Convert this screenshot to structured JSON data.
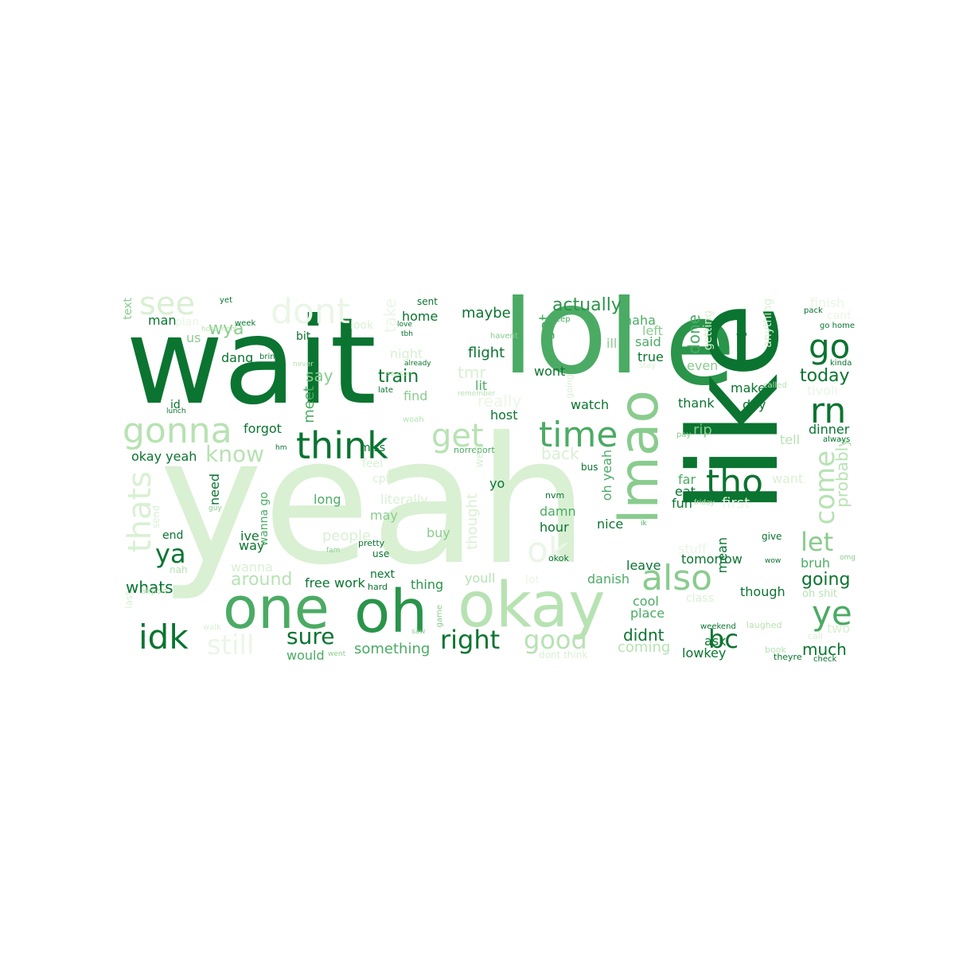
{
  "palette": [
    "#0a7430",
    "#2a944a",
    "#4bab64",
    "#89cc8e",
    "#b7e2b2",
    "#d9f0d3",
    "#eaf6e7"
  ],
  "words": [
    {
      "text": "yeah",
      "color": "#d9f0d3"
    },
    {
      "text": "wait",
      "color": "#0a7430"
    },
    {
      "text": "lol",
      "color": "#4bab64"
    },
    {
      "text": "e",
      "color": "#2a944a"
    },
    {
      "text": "like",
      "color": "#0a7430"
    },
    {
      "text": "lmao",
      "color": "#89cc8e"
    },
    {
      "text": "okay",
      "color": "#b7e2b2"
    },
    {
      "text": "one",
      "color": "#4bab64"
    },
    {
      "text": "oh",
      "color": "#2a944a"
    },
    {
      "text": "think",
      "color": "#0a7430"
    },
    {
      "text": "gonna",
      "color": "#b7e2b2"
    },
    {
      "text": "dont",
      "color": "#eaf6e7"
    },
    {
      "text": "see",
      "color": "#d9f0d3"
    },
    {
      "text": "time",
      "color": "#4bab64"
    },
    {
      "text": "get",
      "color": "#b7e2b2"
    },
    {
      "text": "tho",
      "color": "#0a7430"
    },
    {
      "text": "rn",
      "color": "#0a7430"
    },
    {
      "text": "go",
      "color": "#0a7430"
    },
    {
      "text": "idk",
      "color": "#0a7430"
    },
    {
      "text": "also",
      "color": "#89cc8e"
    },
    {
      "text": "ye",
      "color": "#4bab64"
    },
    {
      "text": "thats",
      "color": "#d9f0d3"
    },
    {
      "text": "know",
      "color": "#b7e2b2"
    },
    {
      "text": "ya",
      "color": "#0a7430"
    },
    {
      "text": "right",
      "color": "#0a7430"
    },
    {
      "text": "good",
      "color": "#b7e2b2"
    },
    {
      "text": "sure",
      "color": "#0a7430"
    },
    {
      "text": "ok",
      "color": "#eaf6e7"
    },
    {
      "text": "come",
      "color": "#b7e2b2"
    },
    {
      "text": "let",
      "color": "#89cc8e"
    },
    {
      "text": "bc",
      "color": "#0a7430"
    },
    {
      "text": "still",
      "color": "#eaf6e7"
    },
    {
      "text": "actually",
      "color": "#2a944a"
    },
    {
      "text": "train",
      "color": "#0a7430"
    },
    {
      "text": "wya",
      "color": "#89cc8e"
    },
    {
      "text": "say",
      "color": "#89cc8e"
    },
    {
      "text": "today",
      "color": "#0a7430"
    },
    {
      "text": "going",
      "color": "#0a7430"
    },
    {
      "text": "whats",
      "color": "#0a7430"
    },
    {
      "text": "around",
      "color": "#b7e2b2"
    },
    {
      "text": "wanna",
      "color": "#d9f0d3"
    },
    {
      "text": "something",
      "color": "#4bab64"
    },
    {
      "text": "didnt",
      "color": "#0a7430"
    },
    {
      "text": "coming",
      "color": "#b7e2b2"
    },
    {
      "text": "much",
      "color": "#0a7430"
    },
    {
      "text": "probably",
      "color": "#b7e2b2"
    },
    {
      "text": "maybe",
      "color": "#0a7430"
    },
    {
      "text": "home",
      "color": "#0a7430"
    },
    {
      "text": "flight",
      "color": "#0a7430"
    },
    {
      "text": "done",
      "color": "#4bab64"
    },
    {
      "text": "got",
      "color": "#4bab64"
    },
    {
      "text": "tmr",
      "color": "#d9f0d3"
    },
    {
      "text": "meet",
      "color": "#4bab64"
    },
    {
      "text": "really",
      "color": "#eaf6e7"
    },
    {
      "text": "back",
      "color": "#d9f0d3"
    },
    {
      "text": "long",
      "color": "#4bab64"
    },
    {
      "text": "literally",
      "color": "#d9f0d3"
    },
    {
      "text": "people",
      "color": "#d9f0d3"
    },
    {
      "text": "may",
      "color": "#89cc8e"
    },
    {
      "text": "buy",
      "color": "#89cc8e"
    },
    {
      "text": "hour",
      "color": "#0a7430"
    },
    {
      "text": "nice",
      "color": "#0a7430"
    },
    {
      "text": "damn",
      "color": "#4bab64"
    },
    {
      "text": "oh yeah",
      "color": "#4bab64"
    },
    {
      "text": "thought",
      "color": "#d9f0d3"
    },
    {
      "text": "leave",
      "color": "#0a7430"
    },
    {
      "text": "danish",
      "color": "#4bab64"
    },
    {
      "text": "mean",
      "color": "#0a7430"
    },
    {
      "text": "tomorrow",
      "color": "#0a7430"
    },
    {
      "text": "bruh",
      "color": "#4bab64"
    },
    {
      "text": "though",
      "color": "#0a7430"
    },
    {
      "text": "place",
      "color": "#4bab64"
    },
    {
      "text": "cool",
      "color": "#4bab64"
    },
    {
      "text": "ask",
      "color": "#0a7430"
    },
    {
      "text": "lowkey",
      "color": "#0a7430"
    },
    {
      "text": "would",
      "color": "#4bab64"
    },
    {
      "text": "free",
      "color": "#0a7430"
    },
    {
      "text": "work",
      "color": "#0a7430"
    },
    {
      "text": "thing",
      "color": "#2a944a"
    },
    {
      "text": "next",
      "color": "#0a7430"
    },
    {
      "text": "youll",
      "color": "#b7e2b2"
    },
    {
      "text": "watch",
      "color": "#0a7430"
    },
    {
      "text": "host",
      "color": "#0a7430"
    },
    {
      "text": "thank",
      "color": "#0a7430"
    },
    {
      "text": "day",
      "color": "#0a7430"
    },
    {
      "text": "make",
      "color": "#0a7430"
    },
    {
      "text": "rip",
      "color": "#89cc8e"
    },
    {
      "text": "dinner",
      "color": "#0a7430"
    },
    {
      "text": "tell",
      "color": "#b7e2b2"
    },
    {
      "text": "want",
      "color": "#d9f0d3"
    },
    {
      "text": "first",
      "color": "#eaf6e7"
    },
    {
      "text": "far",
      "color": "#4bab64"
    },
    {
      "text": "eat",
      "color": "#0a7430"
    },
    {
      "text": "fun",
      "color": "#0a7430"
    },
    {
      "text": "yo",
      "color": "#0a7430"
    },
    {
      "text": "wont",
      "color": "#0a7430"
    },
    {
      "text": "lit",
      "color": "#4bab64"
    },
    {
      "text": "find",
      "color": "#89cc8e"
    },
    {
      "text": "haha",
      "color": "#4bab64"
    },
    {
      "text": "said",
      "color": "#4bab64"
    },
    {
      "text": "left",
      "color": "#89cc8e"
    },
    {
      "text": "true",
      "color": "#0a7430"
    },
    {
      "text": "even",
      "color": "#89cc8e"
    },
    {
      "text": "getting",
      "color": "#d9f0d3"
    },
    {
      "text": "anything",
      "color": "#d9f0d3"
    },
    {
      "text": "finish",
      "color": "#eaf6e7"
    },
    {
      "text": "cant",
      "color": "#eaf6e7"
    },
    {
      "text": "tivoli",
      "color": "#eaf6e7"
    },
    {
      "text": "forgot",
      "color": "#0a7430"
    },
    {
      "text": "dang",
      "color": "#0a7430"
    },
    {
      "text": "bit",
      "color": "#0a7430"
    },
    {
      "text": "man",
      "color": "#0a7430"
    },
    {
      "text": "plan",
      "color": "#eaf6e7"
    },
    {
      "text": "us",
      "color": "#89cc8e"
    },
    {
      "text": "id",
      "color": "#0a7430"
    },
    {
      "text": "need",
      "color": "#0a7430"
    },
    {
      "text": "okay yeah",
      "color": "#0a7430"
    },
    {
      "text": "end",
      "color": "#0a7430"
    },
    {
      "text": "ive",
      "color": "#0a7430"
    },
    {
      "text": "way",
      "color": "#0a7430"
    },
    {
      "text": "wanna go",
      "color": "#4bab64"
    },
    {
      "text": "nah",
      "color": "#b7e2b2"
    },
    {
      "text": "text",
      "color": "#89cc8e"
    },
    {
      "text": "look",
      "color": "#d9f0d3"
    },
    {
      "text": "night",
      "color": "#d9f0d3"
    },
    {
      "text": "take",
      "color": "#eaf6e7"
    },
    {
      "text": "sent",
      "color": "#0a7430"
    },
    {
      "text": "miss",
      "color": "#0a7430"
    },
    {
      "text": "feel",
      "color": "#d9f0d3"
    },
    {
      "text": "use",
      "color": "#0a7430"
    },
    {
      "text": "hard",
      "color": "#0a7430"
    },
    {
      "text": "pretty",
      "color": "#0a7430"
    },
    {
      "text": "norreport",
      "color": "#4bab64"
    },
    {
      "text": "nvm",
      "color": "#0a7430"
    },
    {
      "text": "okok",
      "color": "#0a7430"
    },
    {
      "text": "bus",
      "color": "#0a7430"
    },
    {
      "text": "give",
      "color": "#0a7430"
    },
    {
      "text": "oh shit",
      "color": "#b7e2b2"
    },
    {
      "text": "weekend",
      "color": "#0a7430"
    },
    {
      "text": "dont think",
      "color": "#d9f0d3"
    },
    {
      "text": "theyre",
      "color": "#0a7430"
    },
    {
      "text": "check",
      "color": "#0a7430"
    },
    {
      "text": "two",
      "color": "#d9f0d3"
    },
    {
      "text": "call",
      "color": "#d9f0d3"
    },
    {
      "text": "go home",
      "color": "#0a7430"
    },
    {
      "text": "pack",
      "color": "#0a7430"
    },
    {
      "text": "kinda",
      "color": "#0a7430"
    },
    {
      "text": "always",
      "color": "#0a7430"
    },
    {
      "text": "stay",
      "color": "#d9f0d3"
    },
    {
      "text": "sleep",
      "color": "#4bab64"
    },
    {
      "text": "havent",
      "color": "#89cc8e"
    },
    {
      "text": "remember",
      "color": "#b7e2b2"
    },
    {
      "text": "already",
      "color": "#0a7430"
    },
    {
      "text": "late",
      "color": "#0a7430"
    },
    {
      "text": "bring",
      "color": "#0a7430"
    },
    {
      "text": "lunch",
      "color": "#0a7430"
    },
    {
      "text": "yet",
      "color": "#0a7430"
    },
    {
      "text": "week",
      "color": "#0a7430"
    },
    {
      "text": "love",
      "color": "#0a7430"
    },
    {
      "text": "tbh",
      "color": "#0a7430"
    },
    {
      "text": "ep",
      "color": "#0a7430"
    },
    {
      "text": "called",
      "color": "#b7e2b2"
    },
    {
      "text": "pay",
      "color": "#89cc8e"
    },
    {
      "text": "ik",
      "color": "#4bab64"
    },
    {
      "text": "wow",
      "color": "#0a7430"
    },
    {
      "text": "laughed",
      "color": "#b7e2b2"
    },
    {
      "text": "book",
      "color": "#b7e2b2"
    },
    {
      "text": "airport",
      "color": "#b7e2b2"
    },
    {
      "text": "walk",
      "color": "#d9f0d3"
    },
    {
      "text": "last",
      "color": "#d9f0d3"
    },
    {
      "text": "cph",
      "color": "#d9f0d3"
    },
    {
      "text": "woah",
      "color": "#b7e2b2"
    },
    {
      "text": "season",
      "color": "#b7e2b2"
    },
    {
      "text": "game",
      "color": "#89cc8e"
    },
    {
      "text": "saw",
      "color": "#89cc8e"
    },
    {
      "text": "went",
      "color": "#89cc8e"
    },
    {
      "text": "never",
      "color": "#b7e2b2"
    },
    {
      "text": "guy",
      "color": "#89cc8e"
    },
    {
      "text": "hm",
      "color": "#0a7430"
    },
    {
      "text": "fam",
      "color": "#89cc8e"
    },
    {
      "text": "omg",
      "color": "#89cc8e"
    },
    {
      "text": "host mom",
      "color": "#b7e2b2"
    },
    {
      "text": "friday",
      "color": "#b7e2b2"
    },
    {
      "text": "class",
      "color": "#d9f0d3"
    },
    {
      "text": "stuff",
      "color": "#eaf6e7"
    },
    {
      "text": "lot",
      "color": "#eaf6e7"
    },
    {
      "text": "well",
      "color": "#d9f0d3"
    },
    {
      "text": "going",
      "color": "#d9f0d3"
    },
    {
      "text": "send",
      "color": "#d9f0d3"
    },
    {
      "text": "ill",
      "color": "#89cc8e"
    }
  ]
}
